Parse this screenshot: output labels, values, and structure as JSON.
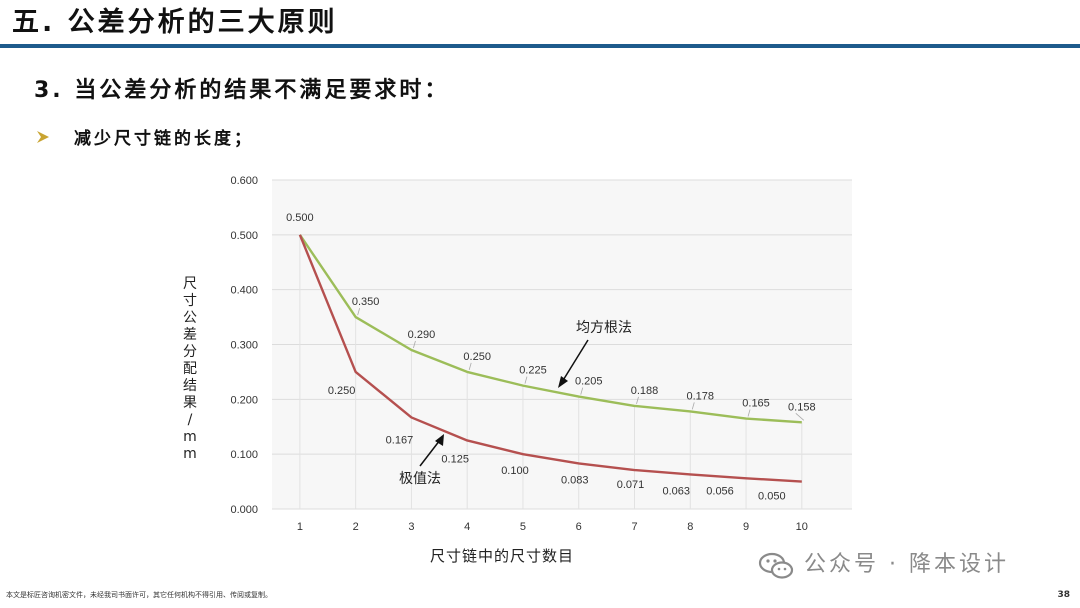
{
  "slide": {
    "title": "五. 公差分析的三大原则",
    "heading": "3. 当公差分析的结果不满足要求时：",
    "bullet": "减少尺寸链的长度；",
    "footer_note": "本文是标匠咨询机密文件，未经我司书面许可，其它任何机构不得引用、传阅或复制。",
    "page_number": "38",
    "watermark": "公众号 · 降本设计",
    "colors": {
      "title_rule": "#1d5b8c",
      "bullet_arrow": "#c9a431",
      "rss_line": "#9cbd59",
      "worst_line": "#b5504f"
    }
  },
  "chart_data": {
    "type": "line",
    "xlabel": "尺寸链中的尺寸数目",
    "ylabel": "尺寸公差分配结果/mm",
    "x": [
      1,
      2,
      3,
      4,
      5,
      6,
      7,
      8,
      9,
      10
    ],
    "ylim": [
      0,
      0.6
    ],
    "y_ticks": [
      "0.000",
      "0.100",
      "0.200",
      "0.300",
      "0.400",
      "0.500",
      "0.600"
    ],
    "grid": true,
    "series": [
      {
        "name": "均方根法",
        "values": [
          0.5,
          0.35,
          0.29,
          0.25,
          0.225,
          0.205,
          0.188,
          0.178,
          0.165,
          0.158
        ],
        "labels": [
          "0.500",
          "0.350",
          "0.290",
          "0.250",
          "0.225",
          "0.205",
          "0.188",
          "0.178",
          "0.165",
          "0.158"
        ],
        "color": "#9cbd59"
      },
      {
        "name": "极值法",
        "values": [
          0.5,
          0.25,
          0.167,
          0.125,
          0.1,
          0.083,
          0.071,
          0.063,
          0.056,
          0.05
        ],
        "labels": [
          "",
          "0.250",
          "0.167",
          "0.125",
          "0.100",
          "0.083",
          "0.071",
          "0.063",
          "0.056",
          "0.050"
        ],
        "color": "#b5504f"
      }
    ]
  }
}
